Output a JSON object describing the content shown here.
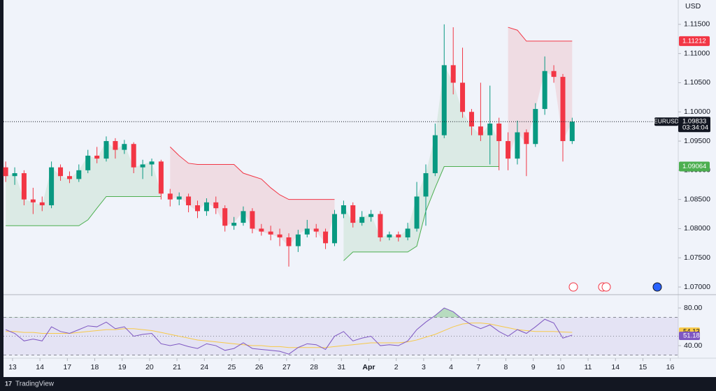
{
  "chart_data": {
    "type": "candlestick",
    "symbol": "EURUSD",
    "currency": "USD",
    "countdown": "03:34:04",
    "brand": "TradingView",
    "up_color": "#089981",
    "down_color": "#f23645",
    "x": [
      -0.25,
      0.08,
      0.42,
      0.75,
      1.08,
      1.42,
      1.75,
      2.08,
      2.42,
      2.75,
      3.08,
      3.42,
      3.75,
      4.08,
      4.42,
      4.75,
      5.08,
      5.42,
      5.75,
      6.08,
      6.42,
      6.75,
      7.08,
      7.42,
      7.75,
      8.08,
      8.42,
      8.75,
      9.08,
      9.42,
      9.75,
      10.08,
      10.42,
      10.75,
      11.08,
      11.42,
      11.75,
      12.08,
      12.42,
      12.75,
      13.08,
      13.42,
      13.75,
      14.08,
      14.42,
      14.75,
      15.08,
      15.42,
      15.75,
      16.08,
      16.42,
      16.75,
      17.08,
      17.42,
      17.75,
      18.08,
      18.42,
      18.75,
      19.08,
      19.42,
      19.75,
      20.08,
      20.42
    ],
    "open": [
      1.0905,
      1.089,
      1.0895,
      1.085,
      1.0845,
      1.084,
      1.0905,
      1.089,
      1.0885,
      1.09,
      1.0925,
      1.092,
      1.095,
      1.0935,
      1.0945,
      1.0905,
      1.091,
      1.0915,
      1.086,
      1.085,
      1.0855,
      1.084,
      1.083,
      1.0845,
      1.0835,
      1.0805,
      1.081,
      1.083,
      1.08,
      1.0795,
      1.079,
      1.0785,
      1.077,
      1.079,
      1.08,
      1.0795,
      1.0775,
      1.0825,
      1.084,
      1.081,
      1.082,
      1.0825,
      1.0785,
      1.079,
      1.0785,
      1.08,
      1.0855,
      1.0895,
      1.096,
      1.108,
      1.105,
      1.1,
      1.0975,
      1.096,
      1.098,
      1.095,
      1.092,
      1.0965,
      1.0945,
      1.1005,
      1.107,
      1.106,
      1.095
    ],
    "high": [
      1.0915,
      1.0905,
      1.09,
      1.087,
      1.0855,
      1.0915,
      1.091,
      1.0898,
      1.091,
      1.0935,
      1.094,
      1.0958,
      1.0955,
      1.0952,
      1.0948,
      1.0918,
      1.092,
      1.0918,
      1.0868,
      1.0862,
      1.086,
      1.0848,
      1.0852,
      1.0855,
      1.084,
      1.082,
      1.0838,
      1.0835,
      1.0808,
      1.0805,
      1.08,
      1.0792,
      1.0798,
      1.0815,
      1.0808,
      1.08,
      1.0832,
      1.0848,
      1.0845,
      1.083,
      1.0832,
      1.083,
      1.0795,
      1.0795,
      1.081,
      1.088,
      1.091,
      1.098,
      1.115,
      1.1145,
      1.111,
      1.1005,
      1.105,
      1.1045,
      1.099,
      1.0965,
      1.0985,
      1.097,
      1.1015,
      1.1095,
      1.108,
      1.1065,
      1.099
    ],
    "low": [
      1.088,
      1.0875,
      1.084,
      1.0825,
      1.083,
      1.0835,
      1.0882,
      1.0878,
      1.088,
      1.0895,
      1.0912,
      1.0915,
      1.092,
      1.0928,
      1.0895,
      1.0885,
      1.089,
      1.085,
      1.0838,
      1.084,
      1.0828,
      1.0818,
      1.0822,
      1.0825,
      1.0795,
      1.0798,
      1.0805,
      1.0792,
      1.0788,
      1.078,
      1.077,
      1.0735,
      1.076,
      1.0785,
      1.0785,
      1.0765,
      1.077,
      1.0818,
      1.0802,
      1.0805,
      1.0812,
      1.0778,
      1.078,
      1.0778,
      1.078,
      1.0795,
      1.0805,
      1.089,
      1.0955,
      1.103,
      1.099,
      1.096,
      1.095,
      1.091,
      1.09,
      1.09,
      1.091,
      1.089,
      1.094,
      1.0995,
      1.105,
      1.0915,
      1.0945
    ],
    "close": [
      1.089,
      1.0895,
      1.085,
      1.0845,
      1.084,
      1.0905,
      1.089,
      1.0885,
      1.09,
      1.0925,
      1.092,
      1.095,
      1.0935,
      1.0945,
      1.0905,
      1.091,
      1.0915,
      1.086,
      1.085,
      1.0855,
      1.084,
      1.083,
      1.0845,
      1.0835,
      1.0805,
      1.081,
      1.083,
      1.08,
      1.0795,
      1.079,
      1.0785,
      1.077,
      1.079,
      1.08,
      1.0795,
      1.0775,
      1.0825,
      1.084,
      1.081,
      1.082,
      1.0825,
      1.0785,
      1.079,
      1.0785,
      1.08,
      1.0855,
      1.0895,
      1.096,
      1.108,
      1.105,
      1.1,
      1.0975,
      1.096,
      1.098,
      1.095,
      1.092,
      1.0965,
      1.0945,
      1.1005,
      1.107,
      1.106,
      1.095,
      1.09833
    ],
    "xlim": [
      -0.33,
      24.29
    ],
    "xticks": [
      {
        "value": 0,
        "label": "13"
      },
      {
        "value": 1,
        "label": "14"
      },
      {
        "value": 2,
        "label": "17"
      },
      {
        "value": 3,
        "label": "18"
      },
      {
        "value": 4,
        "label": "19"
      },
      {
        "value": 5,
        "label": "20"
      },
      {
        "value": 6,
        "label": "21"
      },
      {
        "value": 7,
        "label": "24"
      },
      {
        "value": 8,
        "label": "25"
      },
      {
        "value": 9,
        "label": "26"
      },
      {
        "value": 10,
        "label": "27"
      },
      {
        "value": 11,
        "label": "28"
      },
      {
        "value": 12,
        "label": "31"
      },
      {
        "value": 13,
        "label": "Apr"
      },
      {
        "value": 14,
        "label": "2"
      },
      {
        "value": 15,
        "label": "3"
      },
      {
        "value": 16,
        "label": "4"
      },
      {
        "value": 17,
        "label": "7"
      },
      {
        "value": 18,
        "label": "8"
      },
      {
        "value": 19,
        "label": "9"
      },
      {
        "value": 20,
        "label": "10"
      },
      {
        "value": 21,
        "label": "11"
      },
      {
        "value": 22,
        "label": "14"
      },
      {
        "value": 23,
        "label": "15"
      },
      {
        "value": 24,
        "label": "16"
      }
    ],
    "ylim": [
      1.06893,
      1.11917
    ],
    "yticks": [
      {
        "value": 1.115,
        "label": "1.11500"
      },
      {
        "value": 1.11,
        "label": "1.11000"
      },
      {
        "value": 1.105,
        "label": "1.10500"
      },
      {
        "value": 1.1,
        "label": "1.10000"
      },
      {
        "value": 1.095,
        "label": "1.09500"
      },
      {
        "value": 1.09,
        "label": "1.09000"
      },
      {
        "value": 1.085,
        "label": "1.08500"
      },
      {
        "value": 1.08,
        "label": "1.08000"
      },
      {
        "value": 1.075,
        "label": "1.07500"
      },
      {
        "value": 1.07,
        "label": "1.07000"
      }
    ],
    "supertrend": {
      "up_color": "#4caf50",
      "down_color": "#f23645",
      "up": [
        1.0805,
        1.0805,
        1.0805,
        1.0805,
        1.0805,
        1.0805,
        1.0805,
        1.0805,
        1.0805,
        1.0815,
        1.0835,
        1.0855,
        1.0855,
        1.0855,
        1.0855,
        1.0855,
        1.0855,
        1.0855,
        null,
        null,
        null,
        null,
        null,
        null,
        null,
        null,
        null,
        null,
        null,
        null,
        null,
        null,
        null,
        null,
        null,
        null,
        null,
        1.0745,
        1.076,
        1.076,
        1.076,
        1.076,
        1.076,
        1.076,
        1.076,
        1.077,
        1.083,
        1.087,
        1.09064,
        1.09064,
        1.09064,
        1.09064,
        1.09064,
        1.09064,
        1.09064,
        null,
        null,
        null,
        null,
        null,
        null,
        null,
        null
      ],
      "down": [
        null,
        null,
        null,
        null,
        null,
        null,
        null,
        null,
        null,
        null,
        null,
        null,
        null,
        null,
        null,
        null,
        null,
        null,
        1.094,
        1.0925,
        1.0912,
        1.091,
        1.091,
        1.091,
        1.091,
        1.091,
        1.0895,
        1.089,
        1.0885,
        1.087,
        1.0858,
        1.085,
        1.085,
        1.085,
        1.085,
        1.085,
        1.085,
        null,
        null,
        null,
        null,
        null,
        null,
        null,
        null,
        null,
        null,
        null,
        null,
        null,
        null,
        null,
        null,
        null,
        null,
        1.1145,
        1.114,
        1.11212,
        1.11212,
        1.11212,
        1.11212,
        1.11212,
        1.11212
      ]
    },
    "rsi": {
      "color": "#7e57c2",
      "ma_color": "#f7c948",
      "values": [
        57,
        53,
        45,
        47,
        45,
        60,
        55,
        53,
        57,
        61,
        60,
        65,
        58,
        60,
        50,
        52,
        53,
        42,
        40,
        42,
        39,
        37,
        42,
        40,
        35,
        37,
        43,
        37,
        36,
        35,
        34,
        31,
        38,
        42,
        41,
        36,
        50,
        55,
        45,
        48,
        50,
        40,
        41,
        40,
        45,
        57,
        65,
        72,
        80,
        76,
        68,
        62,
        58,
        62,
        55,
        50,
        57,
        53,
        60,
        68,
        64,
        48,
        51.18
      ],
      "ma": [
        55,
        55,
        54,
        54,
        53,
        53,
        53,
        53,
        54,
        55,
        56,
        57,
        57,
        58,
        58,
        57,
        56,
        54,
        52,
        50,
        48,
        46,
        45,
        44,
        43,
        42,
        41,
        40,
        40,
        39,
        39,
        38,
        38,
        38,
        38,
        38,
        39,
        40,
        41,
        42,
        43,
        43,
        43,
        43,
        44,
        46,
        49,
        52,
        56,
        60,
        63,
        64,
        64,
        63,
        61,
        59,
        57,
        56,
        55,
        55,
        55,
        54.5,
        54.13
      ],
      "bands": [
        70,
        50,
        30
      ],
      "ylim": [
        26.7,
        91.9
      ],
      "yticks": [
        {
          "value": 80,
          "label": "80.00"
        },
        {
          "value": 40,
          "label": "40.00"
        }
      ]
    }
  }
}
